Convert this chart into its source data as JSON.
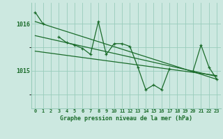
{
  "title": "Graphe pression niveau de la mer (hPa)",
  "bg_color": "#cce8e0",
  "grid_color": "#99ccbb",
  "line_color": "#1a6b2a",
  "xlim": [
    -0.5,
    23.5
  ],
  "ylim": [
    1014.2,
    1016.45
  ],
  "yticks": [
    1015,
    1016
  ],
  "x_labels": [
    "0",
    "1",
    "2",
    "3",
    "4",
    "5",
    "6",
    "7",
    "8",
    "9",
    "10",
    "11",
    "12",
    "13",
    "14",
    "15",
    "16",
    "17",
    "18",
    "19",
    "20",
    "21",
    "22",
    "23"
  ],
  "main_data": [
    1016.25,
    1016.0,
    null,
    1015.72,
    1015.6,
    1015.55,
    1015.48,
    1015.35,
    1016.05,
    1015.35,
    1015.58,
    1015.58,
    1015.52,
    1015.08,
    1014.6,
    1014.7,
    1014.6,
    1015.05,
    null,
    null,
    1015.0,
    1015.55,
    1015.08,
    1014.82
  ],
  "trend1": [
    1016.05,
    1014.82
  ],
  "trend2": [
    1015.75,
    1014.88
  ],
  "trend3": [
    1015.42,
    1014.9
  ]
}
